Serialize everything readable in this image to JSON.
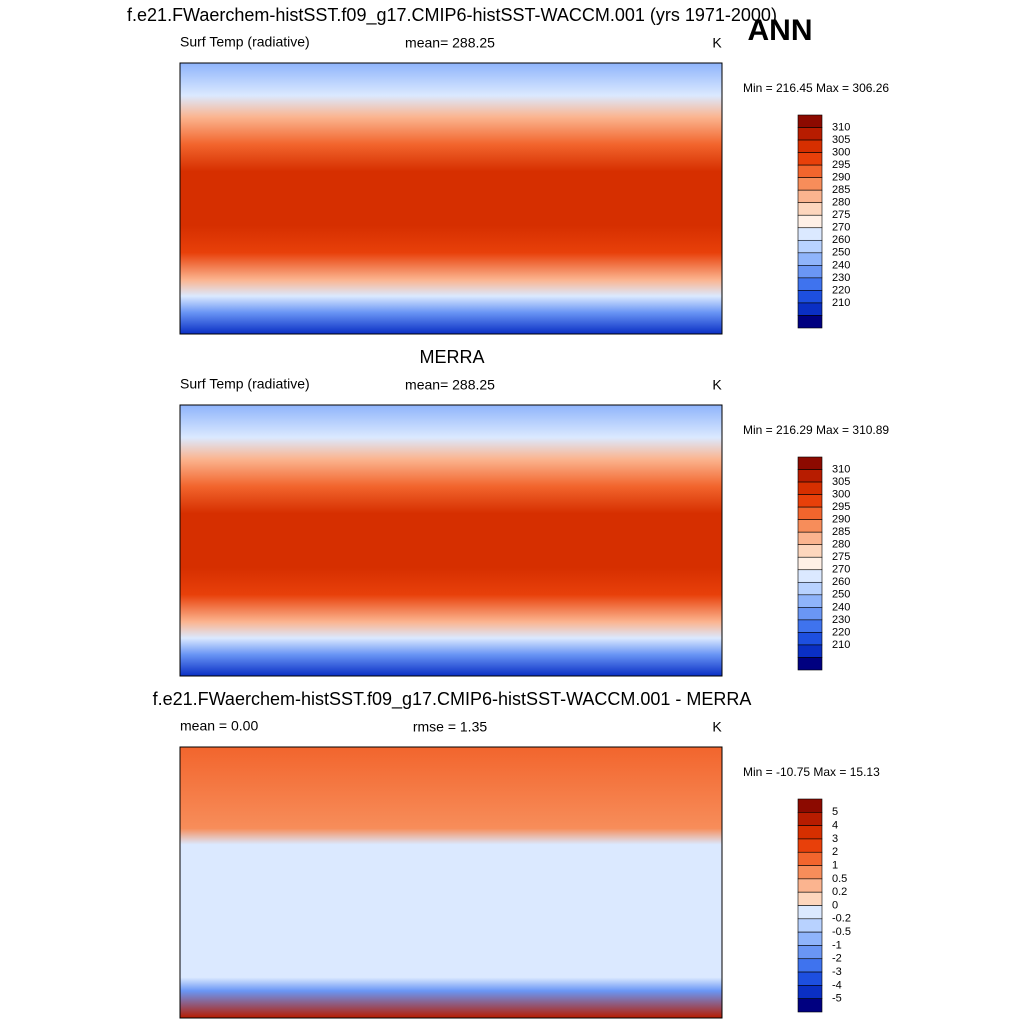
{
  "figure_label": "ANN",
  "panels": [
    {
      "title": "f.e21.FWaerchem-histSST.f09_g17.CMIP6-histSST-WACCM.001 (yrs 1971-2000)",
      "left_label": "Surf Temp (radiative)",
      "center_label": "mean= 288.25",
      "units": "K",
      "range_text": "Min = 216.45 Max = 306.26",
      "colorbar": {
        "levels": [
          310,
          305,
          300,
          295,
          290,
          285,
          280,
          275,
          270,
          260,
          250,
          240,
          230,
          220,
          210
        ],
        "colors": [
          "#8c0a00",
          "#b71c00",
          "#d62f00",
          "#e8400a",
          "#f2652d",
          "#f78d5a",
          "#fbb48f",
          "#fdd6bd",
          "#fff0e6",
          "#dbe9ff",
          "#b8d2ff",
          "#8fb4fb",
          "#6a96f5",
          "#3f73ee",
          "#1d4fe0",
          "#0a2fc4",
          "#000080"
        ]
      }
    },
    {
      "title": "MERRA",
      "left_label": "Surf Temp (radiative)",
      "center_label": "mean= 288.25",
      "units": "K",
      "range_text": "Min = 216.29 Max = 310.89",
      "colorbar": {
        "levels": [
          310,
          305,
          300,
          295,
          290,
          285,
          280,
          275,
          270,
          260,
          250,
          240,
          230,
          220,
          210
        ],
        "colors": [
          "#8c0a00",
          "#b71c00",
          "#d62f00",
          "#e8400a",
          "#f2652d",
          "#f78d5a",
          "#fbb48f",
          "#fdd6bd",
          "#fff0e6",
          "#dbe9ff",
          "#b8d2ff",
          "#8fb4fb",
          "#6a96f5",
          "#3f73ee",
          "#1d4fe0",
          "#0a2fc4",
          "#000080"
        ]
      }
    },
    {
      "title": "f.e21.FWaerchem-histSST.f09_g17.CMIP6-histSST-WACCM.001 - MERRA",
      "left_label": "mean =   0.00",
      "center_label": "rmse =   1.35",
      "units": "K",
      "range_text": "Min = -10.75 Max =  15.13",
      "colorbar": {
        "levels": [
          5,
          4,
          3,
          2,
          1,
          0.5,
          0.2,
          0,
          -0.2,
          -0.5,
          -1,
          -2,
          -3,
          -4,
          -5
        ],
        "colors": [
          "#8c0a00",
          "#b71c00",
          "#d62f00",
          "#e8400a",
          "#f2652d",
          "#f78d5a",
          "#fbb48f",
          "#fdd6bd",
          "#dbe9ff",
          "#b8d2ff",
          "#8fb4fb",
          "#6a96f5",
          "#3f73ee",
          "#1d4fe0",
          "#0a2fc4",
          "#000080"
        ]
      }
    }
  ]
}
